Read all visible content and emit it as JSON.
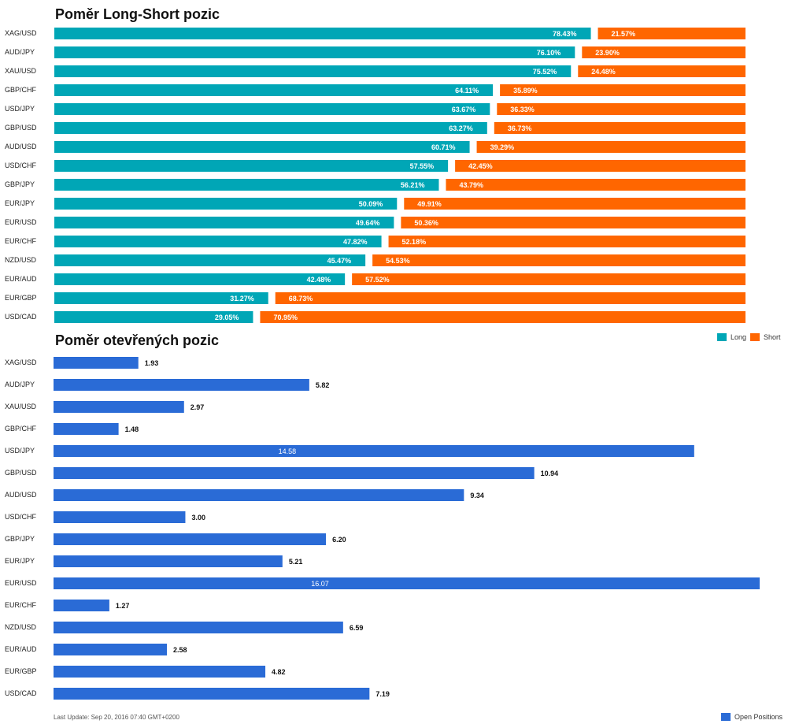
{
  "colors": {
    "long": "#00a6b6",
    "short": "#ff6600",
    "open": "#2a6bd6"
  },
  "legend": {
    "long": "Long",
    "short": "Short",
    "open": "Open Positions"
  },
  "footer": "Last Update: Sep 20, 2016 07:40 GMT+0200",
  "chart_data": [
    {
      "type": "bar",
      "title": "Poměr Long-Short pozic",
      "categories": [
        "XAG/USD",
        "AUD/JPY",
        "XAU/USD",
        "GBP/CHF",
        "USD/JPY",
        "GBP/USD",
        "AUD/USD",
        "USD/CHF",
        "GBP/JPY",
        "EUR/JPY",
        "EUR/USD",
        "EUR/CHF",
        "NZD/USD",
        "EUR/AUD",
        "EUR/GBP",
        "USD/CAD"
      ],
      "series": [
        {
          "name": "Long",
          "values": [
            78.43,
            76.1,
            75.52,
            64.11,
            63.67,
            63.27,
            60.71,
            57.55,
            56.21,
            50.09,
            49.64,
            47.82,
            45.47,
            42.48,
            31.27,
            29.05
          ],
          "labels": [
            "78.43%",
            "76.10%",
            "75.52%",
            "64.11%",
            "63.67%",
            "63.27%",
            "60.71%",
            "57.55%",
            "56.21%",
            "50.09%",
            "49.64%",
            "47.82%",
            "45.47%",
            "42.48%",
            "31.27%",
            "29.05%"
          ]
        },
        {
          "name": "Short",
          "values": [
            21.57,
            23.9,
            24.48,
            35.89,
            36.33,
            36.73,
            39.29,
            42.45,
            43.79,
            49.91,
            50.36,
            52.18,
            54.53,
            57.52,
            68.73,
            70.95
          ],
          "labels": [
            "21.57%",
            "23.90%",
            "24.48%",
            "35.89%",
            "36.33%",
            "36.73%",
            "39.29%",
            "42.45%",
            "43.79%",
            "49.91%",
            "50.36%",
            "52.18%",
            "54.53%",
            "57.52%",
            "68.73%",
            "70.95%"
          ]
        }
      ],
      "stacked": true,
      "legend_position": "bottom-right"
    },
    {
      "type": "bar",
      "title": "Poměr otevřených pozic",
      "categories": [
        "XAG/USD",
        "AUD/JPY",
        "XAU/USD",
        "GBP/CHF",
        "USD/JPY",
        "GBP/USD",
        "AUD/USD",
        "USD/CHF",
        "GBP/JPY",
        "EUR/JPY",
        "EUR/USD",
        "EUR/CHF",
        "NZD/USD",
        "EUR/AUD",
        "EUR/GBP",
        "USD/CAD"
      ],
      "series": [
        {
          "name": "Open Positions",
          "values": [
            1.93,
            5.82,
            2.97,
            1.48,
            14.58,
            10.94,
            9.34,
            3.0,
            6.2,
            5.21,
            16.07,
            1.27,
            6.59,
            2.58,
            4.82,
            7.19
          ],
          "labels": [
            "1.93",
            "5.82",
            "2.97",
            "1.48",
            "14.58",
            "10.94",
            "9.34",
            "3.00",
            "6.20",
            "5.21",
            "16.07",
            "1.27",
            "6.59",
            "2.58",
            "4.82",
            "7.19"
          ]
        }
      ],
      "legend_position": "bottom-right"
    }
  ]
}
